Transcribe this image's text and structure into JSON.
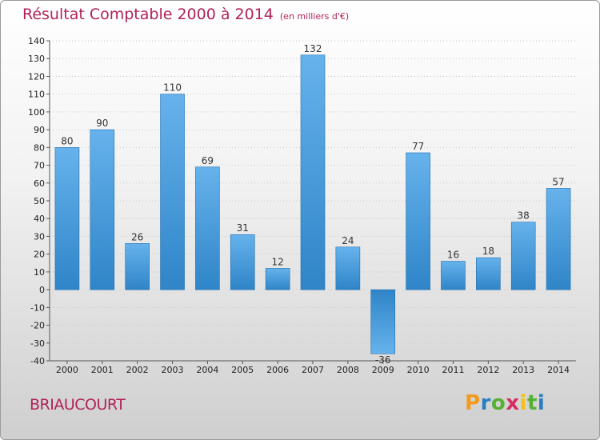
{
  "chart_data": {
    "type": "bar",
    "title": "Résultat Comptable 2000 à 2014",
    "subtitle": "(en milliers d'€)",
    "categories": [
      "2000",
      "2001",
      "2002",
      "2003",
      "2004",
      "2005",
      "2006",
      "2007",
      "2008",
      "2009",
      "2010",
      "2011",
      "2012",
      "2013",
      "2014"
    ],
    "values": [
      80,
      90,
      26,
      110,
      69,
      31,
      12,
      132,
      24,
      -36,
      77,
      16,
      18,
      38,
      57
    ],
    "ylim": [
      -40,
      140
    ],
    "yticks": [
      140,
      130,
      120,
      110,
      100,
      90,
      80,
      70,
      60,
      50,
      40,
      30,
      20,
      10,
      0,
      -10,
      -20,
      -30,
      -40
    ],
    "xlabel": "",
    "ylabel": "",
    "bar_color": "#2f85c8",
    "bar_color_light": "#66b2ec"
  },
  "footer": {
    "town": "BRIAUCOURT",
    "logo_letters": [
      "P",
      "r",
      "o",
      "x",
      "i",
      "t",
      "i"
    ],
    "logo_colors": [
      "#f39a1e",
      "#2a7fc0",
      "#55b036",
      "#d62c5f",
      "#f2c21a",
      "#55b036",
      "#2a7fc0"
    ]
  },
  "colors": {
    "title": "#b0225a"
  }
}
